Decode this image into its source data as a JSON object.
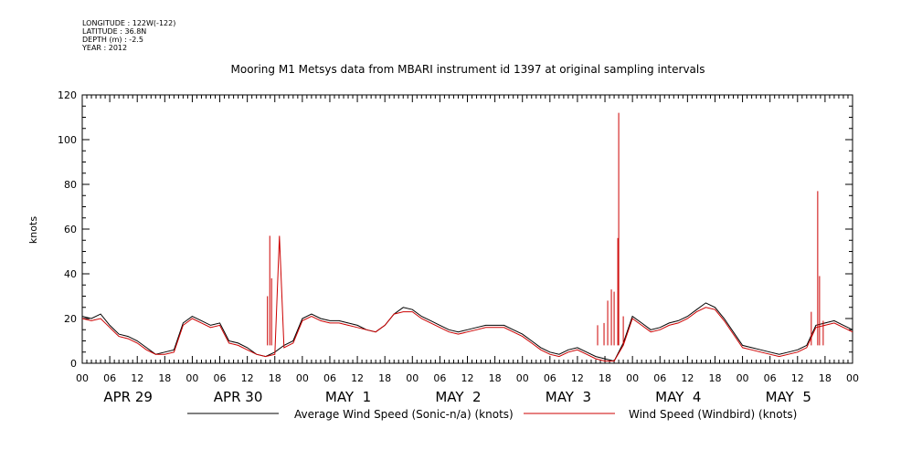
{
  "metadata": {
    "longitude": "LONGITUDE : 122W(-122)",
    "latitude": "LATITUDE : 36.8N",
    "depth": "DEPTH (m) : -2.5",
    "year": "YEAR : 2012"
  },
  "chart_data": {
    "type": "line",
    "title": "Mooring M1 Metsys data from MBARI instrument id 1397 at original sampling intervals",
    "ylabel": "knots",
    "ylim": [
      0,
      120
    ],
    "yticks": [
      0,
      20,
      40,
      60,
      80,
      100,
      120
    ],
    "ytick_labels": [
      "0",
      "20",
      "40",
      "60",
      "80",
      "100",
      "120"
    ],
    "xlim_hours": [
      0,
      168
    ],
    "x_hour_ticks": [
      "00",
      "06",
      "12",
      "18",
      "00",
      "06",
      "12",
      "18",
      "00",
      "06",
      "12",
      "18",
      "00",
      "06",
      "12",
      "18",
      "00",
      "06",
      "12",
      "18",
      "00",
      "06",
      "12",
      "18",
      "00",
      "06",
      "12",
      "18",
      "00"
    ],
    "day_labels": [
      "APR 29",
      "APR 30",
      "MAY  1",
      "MAY  2",
      "MAY  3",
      "MAY  4",
      "MAY  5"
    ],
    "grid": false,
    "legend_position": "bottom",
    "series": [
      {
        "name": "Average Wind Speed (Sonic-n/a) (knots)",
        "color": "#000000",
        "x": [
          0,
          2,
          4,
          6,
          8,
          10,
          12,
          14,
          16,
          18,
          20,
          22,
          24,
          26,
          28,
          30,
          32,
          34,
          36,
          38,
          40,
          42,
          44,
          46,
          48,
          50,
          52,
          54,
          56,
          58,
          60,
          62,
          64,
          66,
          68,
          70,
          72,
          74,
          76,
          78,
          80,
          82,
          84,
          86,
          88,
          90,
          92,
          94,
          96,
          98,
          100,
          102,
          104,
          106,
          108,
          110,
          112,
          114,
          116,
          118,
          120,
          122,
          124,
          126,
          128,
          130,
          132,
          134,
          136,
          138,
          140,
          142,
          144,
          146,
          148,
          150,
          152,
          154,
          156,
          158,
          160,
          162,
          164,
          166,
          168
        ],
        "y": [
          21,
          20,
          22,
          17,
          13,
          12,
          10,
          7,
          4,
          5,
          6,
          18,
          21,
          19,
          17,
          18,
          10,
          9,
          7,
          4,
          3,
          5,
          8,
          10,
          20,
          22,
          20,
          19,
          19,
          18,
          17,
          15,
          14,
          17,
          22,
          25,
          24,
          21,
          19,
          17,
          15,
          14,
          15,
          16,
          17,
          17,
          17,
          15,
          13,
          10,
          7,
          5,
          4,
          6,
          7,
          5,
          3,
          2,
          1,
          9,
          21,
          18,
          15,
          16,
          18,
          19,
          21,
          24,
          27,
          25,
          20,
          14,
          8,
          7,
          6,
          5,
          4,
          5,
          6,
          8,
          17,
          18,
          19,
          17,
          15
        ]
      },
      {
        "name": "Wind Speed (Windbird) (knots)",
        "color": "#cc0000",
        "x": [
          0,
          2,
          4,
          6,
          8,
          10,
          12,
          14,
          16,
          18,
          20,
          22,
          24,
          26,
          28,
          30,
          32,
          34,
          36,
          38,
          40,
          42,
          43,
          44,
          46,
          48,
          50,
          52,
          54,
          56,
          58,
          60,
          62,
          64,
          66,
          68,
          70,
          72,
          74,
          76,
          78,
          80,
          82,
          84,
          86,
          88,
          90,
          92,
          94,
          96,
          98,
          100,
          102,
          104,
          106,
          108,
          110,
          112,
          114,
          116,
          118,
          120,
          122,
          124,
          126,
          128,
          130,
          132,
          134,
          136,
          138,
          140,
          142,
          144,
          146,
          148,
          150,
          152,
          154,
          156,
          158,
          160,
          162,
          164,
          166,
          168
        ],
        "y": [
          20,
          19,
          20,
          16,
          12,
          11,
          9,
          6,
          4,
          4,
          5,
          17,
          20,
          18,
          16,
          17,
          9,
          8,
          6,
          4,
          3,
          4,
          57,
          7,
          9,
          19,
          21,
          19,
          18,
          18,
          17,
          16,
          15,
          14,
          17,
          22,
          23,
          23,
          20,
          18,
          16,
          14,
          13,
          14,
          15,
          16,
          16,
          16,
          14,
          12,
          9,
          6,
          4,
          3,
          5,
          6,
          4,
          2,
          1,
          1,
          8,
          20,
          17,
          14,
          15,
          17,
          18,
          20,
          23,
          25,
          24,
          19,
          13,
          7,
          6,
          5,
          4,
          3,
          4,
          5,
          7,
          16,
          17,
          18,
          16,
          14
        ]
      }
    ],
    "spikes": [
      {
        "x": 40.9,
        "y": 57
      },
      {
        "x": 41.3,
        "y": 38
      },
      {
        "x": 40.4,
        "y": 30
      },
      {
        "x": 117.0,
        "y": 112
      },
      {
        "x": 116.8,
        "y": 56
      },
      {
        "x": 115.4,
        "y": 33
      },
      {
        "x": 116.0,
        "y": 32
      },
      {
        "x": 114.6,
        "y": 28
      },
      {
        "x": 113.8,
        "y": 18
      },
      {
        "x": 112.4,
        "y": 17
      },
      {
        "x": 118.0,
        "y": 21
      },
      {
        "x": 160.4,
        "y": 77
      },
      {
        "x": 160.8,
        "y": 39
      },
      {
        "x": 159.0,
        "y": 23
      },
      {
        "x": 161.6,
        "y": 19
      }
    ]
  }
}
